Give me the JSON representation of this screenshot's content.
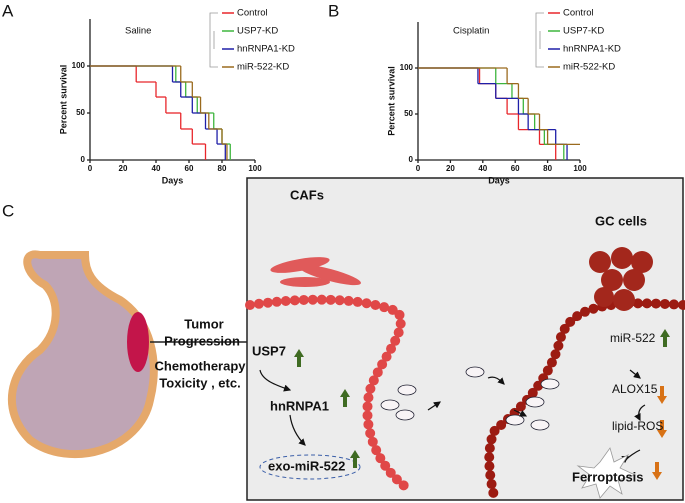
{
  "chart_data": [
    {
      "type": "line",
      "step": true,
      "panel": "A",
      "title": "Saline",
      "x_label": "Days",
      "y_label": "Percent survival",
      "xlim": [
        0,
        100
      ],
      "xticks": [
        0,
        20,
        40,
        60,
        80,
        100
      ],
      "ylim": [
        0,
        150
      ],
      "yticks": [
        0,
        50,
        100
      ],
      "legend": "right",
      "series": [
        {
          "name": "Control",
          "color": "#e8262b",
          "x": [
            0,
            28,
            40,
            46,
            55,
            62,
            70
          ],
          "values": [
            100,
            83,
            67,
            50,
            33,
            17,
            0
          ]
        },
        {
          "name": "USP7-KD",
          "color": "#3db53d",
          "x": [
            0,
            52,
            58,
            65,
            75,
            80,
            85
          ],
          "values": [
            100,
            83,
            67,
            50,
            33,
            17,
            0
          ]
        },
        {
          "name": "hnRNPA1-KD",
          "color": "#1f1fa8",
          "x": [
            0,
            50,
            55,
            62,
            70,
            77,
            82
          ],
          "values": [
            100,
            83,
            67,
            50,
            33,
            17,
            0
          ]
        },
        {
          "name": "miR-522-KD",
          "color": "#9a6a1e",
          "x": [
            0,
            55,
            62,
            67,
            72,
            80,
            83
          ],
          "values": [
            100,
            83,
            67,
            50,
            33,
            17,
            0
          ]
        }
      ]
    },
    {
      "type": "line",
      "step": true,
      "panel": "B",
      "title": "Cisplatin",
      "x_label": "Days",
      "y_label": "Percent survival",
      "xlim": [
        0,
        100
      ],
      "xticks": [
        0,
        20,
        40,
        60,
        80,
        100
      ],
      "ylim": [
        0,
        150
      ],
      "yticks": [
        0,
        50,
        100
      ],
      "legend": "right",
      "series": [
        {
          "name": "Control",
          "color": "#e8262b",
          "x": [
            0,
            38,
            48,
            55,
            62,
            75,
            85
          ],
          "values": [
            100,
            83,
            67,
            50,
            33,
            17,
            0
          ]
        },
        {
          "name": "USP7-KD",
          "color": "#3db53d",
          "x": [
            0,
            48,
            58,
            65,
            72,
            78,
            90
          ],
          "values": [
            100,
            83,
            67,
            50,
            33,
            17,
            0
          ]
        },
        {
          "name": "hnRNPA1-KD",
          "color": "#1f1fa8",
          "x": [
            0,
            37,
            48,
            62,
            68,
            85,
            92
          ],
          "values": [
            100,
            83,
            67,
            50,
            33,
            17,
            0
          ]
        },
        {
          "name": "miR-522-KD",
          "color": "#9a6a1e",
          "x": [
            0,
            55,
            62,
            68,
            75,
            80
          ],
          "values": [
            100,
            83,
            67,
            50,
            33,
            17
          ]
        }
      ]
    }
  ],
  "diagram": {
    "panel": "C",
    "cafs": "CAFs",
    "gc_cells": "GC cells",
    "effects": [
      "Tumor",
      "Progression",
      "Chemotherapy",
      "Toxicity , etc."
    ],
    "left_pathway": [
      "USP7",
      "hnRNPA1",
      "exo-miR-522"
    ],
    "right_pathway": [
      "miR-522",
      "ALOX15",
      "lipid-ROS",
      "Ferroptosis"
    ]
  }
}
